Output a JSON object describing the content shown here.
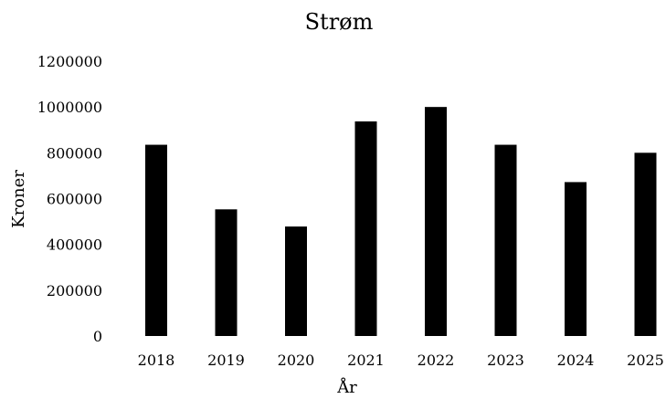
{
  "chart_data": {
    "type": "bar",
    "title": "Strøm",
    "xlabel": "År",
    "ylabel": "Kroner",
    "categories": [
      "2018",
      "2019",
      "2020",
      "2021",
      "2022",
      "2023",
      "2024",
      "2025"
    ],
    "values": [
      835000,
      553000,
      478000,
      937000,
      1000000,
      835000,
      672000,
      800000
    ],
    "ylim": [
      0,
      1200000
    ],
    "yticks": [
      "0",
      "200000",
      "400000",
      "600000",
      "800000",
      "1000000",
      "1200000"
    ],
    "grid": false,
    "legend": "none",
    "colors": {
      "bar": "#000000",
      "background": "#ffffff",
      "text": "#000000"
    }
  }
}
